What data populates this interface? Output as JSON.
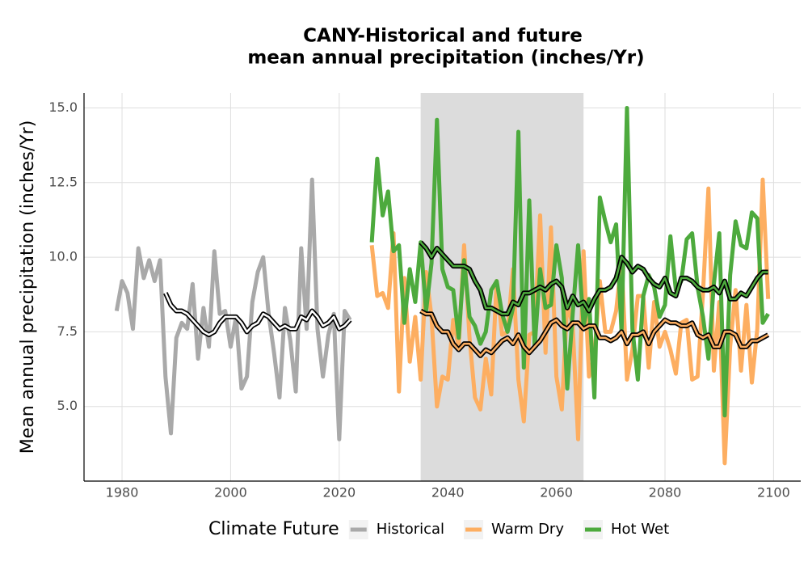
{
  "chart_data": {
    "type": "line",
    "title": [
      "CANY-Historical and future",
      "mean annual precipitation (inches/Yr)"
    ],
    "y_label": "Mean annual precipitation (inches/Yr)",
    "legend_title": "Climate Future",
    "legend": "bottom",
    "grid": true,
    "xlim": [
      1973,
      2105
    ],
    "ylim": [
      2.5,
      15.5
    ],
    "xticks": [
      1980,
      2000,
      2020,
      2040,
      2060,
      2080,
      2100
    ],
    "yticks": [
      {
        "value": 5,
        "label": "5.0"
      },
      {
        "value": 7.5,
        "label": "7.5"
      },
      {
        "value": 10,
        "label": "10.0"
      },
      {
        "value": 12.5,
        "label": "12.5"
      },
      {
        "value": 15,
        "label": "15.0"
      }
    ],
    "shaded_region": [
      2035,
      2065
    ],
    "shade_color": "#dcdcdc",
    "series": [
      {
        "name": "Historical",
        "color": "#a9a9a9",
        "x": [
          1979,
          1980,
          1981,
          1982,
          1983,
          1984,
          1985,
          1986,
          1987,
          1988,
          1989,
          1990,
          1991,
          1992,
          1993,
          1994,
          1995,
          1996,
          1997,
          1998,
          1999,
          2000,
          2001,
          2002,
          2003,
          2004,
          2005,
          2006,
          2007,
          2008,
          2009,
          2010,
          2011,
          2012,
          2013,
          2014,
          2015,
          2016,
          2017,
          2018,
          2019,
          2020,
          2021,
          2022
        ],
        "values": [
          8.2,
          9.2,
          8.8,
          7.6,
          10.3,
          9.3,
          9.9,
          9.2,
          9.9,
          6.0,
          4.1,
          7.3,
          7.8,
          7.6,
          9.1,
          6.6,
          8.3,
          7.0,
          10.2,
          8.1,
          8.2,
          7.0,
          8.0,
          5.6,
          6.0,
          8.5,
          9.5,
          10.0,
          8.1,
          6.8,
          5.3,
          8.3,
          7.2,
          5.5,
          10.3,
          7.6,
          12.6,
          7.6,
          6.0,
          7.4,
          8.1,
          3.9,
          8.2,
          7.9
        ],
        "smoothed": [
          null,
          null,
          null,
          null,
          null,
          null,
          null,
          null,
          null,
          8.8,
          8.4,
          8.2,
          8.2,
          8.1,
          7.9,
          7.7,
          7.5,
          7.4,
          7.5,
          7.8,
          8.0,
          8.0,
          8.0,
          7.8,
          7.5,
          7.7,
          7.8,
          8.1,
          8.0,
          7.8,
          7.6,
          7.7,
          7.6,
          7.6,
          8.0,
          7.9,
          8.2,
          8.0,
          7.7,
          7.8,
          8.0,
          7.6,
          7.7,
          7.9
        ]
      },
      {
        "name": "Warm Dry",
        "color": "#fdae61",
        "x": [
          2026,
          2027,
          2028,
          2029,
          2030,
          2031,
          2032,
          2033,
          2034,
          2035,
          2036,
          2037,
          2038,
          2039,
          2040,
          2041,
          2042,
          2043,
          2044,
          2045,
          2046,
          2047,
          2048,
          2049,
          2050,
          2051,
          2052,
          2053,
          2054,
          2055,
          2056,
          2057,
          2058,
          2059,
          2060,
          2061,
          2062,
          2063,
          2064,
          2065,
          2066,
          2067,
          2068,
          2069,
          2070,
          2071,
          2072,
          2073,
          2074,
          2075,
          2076,
          2077,
          2078,
          2079,
          2080,
          2081,
          2082,
          2083,
          2084,
          2085,
          2086,
          2087,
          2088,
          2089,
          2090,
          2091,
          2092,
          2093,
          2094,
          2095,
          2096,
          2097,
          2098,
          2099
        ],
        "values": [
          10.4,
          8.7,
          8.8,
          8.3,
          10.8,
          5.5,
          9.3,
          6.5,
          8.0,
          5.9,
          9.5,
          8.0,
          5.0,
          6.0,
          5.9,
          7.9,
          7.0,
          10.4,
          7.3,
          5.3,
          4.9,
          6.6,
          5.4,
          9.2,
          7.4,
          7.5,
          9.6,
          5.9,
          4.5,
          7.4,
          7.5,
          11.4,
          6.8,
          11.0,
          6.0,
          4.9,
          8.5,
          7.7,
          3.9,
          10.2,
          6.0,
          6.7,
          9.2,
          7.5,
          7.5,
          8.2,
          9.9,
          5.9,
          6.9,
          8.7,
          8.7,
          6.3,
          8.5,
          7.0,
          7.5,
          6.9,
          6.1,
          7.8,
          7.9,
          5.9,
          6.0,
          8.8,
          12.3,
          6.2,
          8.5,
          3.1,
          7.0,
          8.9,
          6.2,
          8.4,
          5.8,
          7.6,
          12.6,
          8.6
        ],
        "smoothed": [
          null,
          null,
          null,
          null,
          null,
          null,
          null,
          null,
          null,
          8.2,
          8.1,
          8.1,
          7.7,
          7.5,
          7.5,
          7.1,
          6.9,
          7.1,
          7.1,
          6.9,
          6.7,
          6.9,
          6.8,
          7.0,
          7.2,
          7.3,
          7.1,
          7.4,
          7.0,
          6.8,
          7.0,
          7.2,
          7.5,
          7.8,
          7.9,
          7.7,
          7.6,
          7.8,
          7.8,
          7.6,
          7.7,
          7.7,
          7.3,
          7.3,
          7.2,
          7.3,
          7.5,
          7.1,
          7.4,
          7.4,
          7.5,
          7.1,
          7.5,
          7.7,
          7.9,
          7.8,
          7.8,
          7.7,
          7.7,
          7.8,
          7.4,
          7.3,
          7.4,
          7.0,
          7.0,
          7.5,
          7.5,
          7.4,
          7.0,
          7.0,
          7.2,
          7.2,
          7.3,
          7.4
        ]
      },
      {
        "name": "Hot Wet",
        "color": "#4daa3d",
        "x": [
          2026,
          2027,
          2028,
          2029,
          2030,
          2031,
          2032,
          2033,
          2034,
          2035,
          2036,
          2037,
          2038,
          2039,
          2040,
          2041,
          2042,
          2043,
          2044,
          2045,
          2046,
          2047,
          2048,
          2049,
          2050,
          2051,
          2052,
          2053,
          2054,
          2055,
          2056,
          2057,
          2058,
          2059,
          2060,
          2061,
          2062,
          2063,
          2064,
          2065,
          2066,
          2067,
          2068,
          2069,
          2070,
          2071,
          2072,
          2073,
          2074,
          2075,
          2076,
          2077,
          2078,
          2079,
          2080,
          2081,
          2082,
          2083,
          2084,
          2085,
          2086,
          2087,
          2088,
          2089,
          2090,
          2091,
          2092,
          2093,
          2094,
          2095,
          2096,
          2097,
          2098,
          2099
        ],
        "values": [
          10.5,
          13.3,
          11.4,
          12.2,
          10.2,
          10.4,
          7.8,
          9.6,
          8.5,
          10.5,
          8.2,
          9.8,
          14.6,
          9.6,
          9.0,
          8.9,
          7.3,
          9.9,
          8.0,
          7.7,
          7.1,
          7.5,
          8.9,
          9.2,
          8.1,
          7.5,
          8.3,
          14.2,
          6.3,
          11.9,
          7.0,
          9.6,
          8.3,
          8.4,
          10.4,
          9.3,
          5.6,
          8.1,
          10.4,
          7.7,
          8.6,
          5.3,
          12.0,
          11.2,
          10.5,
          11.1,
          7.5,
          15.0,
          7.6,
          5.9,
          8.7,
          9.4,
          9.0,
          8.0,
          8.4,
          10.7,
          8.9,
          9.2,
          10.6,
          10.8,
          9.0,
          8.0,
          6.6,
          9.1,
          10.8,
          4.7,
          9.4,
          11.2,
          10.4,
          10.3,
          11.5,
          11.3,
          7.8,
          8.1
        ],
        "smoothed": [
          null,
          null,
          null,
          null,
          null,
          null,
          null,
          null,
          null,
          10.5,
          10.3,
          10.0,
          10.3,
          10.1,
          9.9,
          9.7,
          9.7,
          9.7,
          9.6,
          9.2,
          8.9,
          8.3,
          8.3,
          8.2,
          8.1,
          8.1,
          8.5,
          8.4,
          8.8,
          8.8,
          8.9,
          9.0,
          8.9,
          9.1,
          9.2,
          9.0,
          8.3,
          8.7,
          8.4,
          8.5,
          8.2,
          8.6,
          8.9,
          8.9,
          9.0,
          9.3,
          10.0,
          9.8,
          9.5,
          9.7,
          9.6,
          9.3,
          9.1,
          9.0,
          9.3,
          8.8,
          8.7,
          9.3,
          9.3,
          9.2,
          9.0,
          8.9,
          8.9,
          9.0,
          8.8,
          9.2,
          8.6,
          8.6,
          8.8,
          8.7,
          9.0,
          9.3,
          9.5,
          9.5
        ]
      }
    ]
  }
}
